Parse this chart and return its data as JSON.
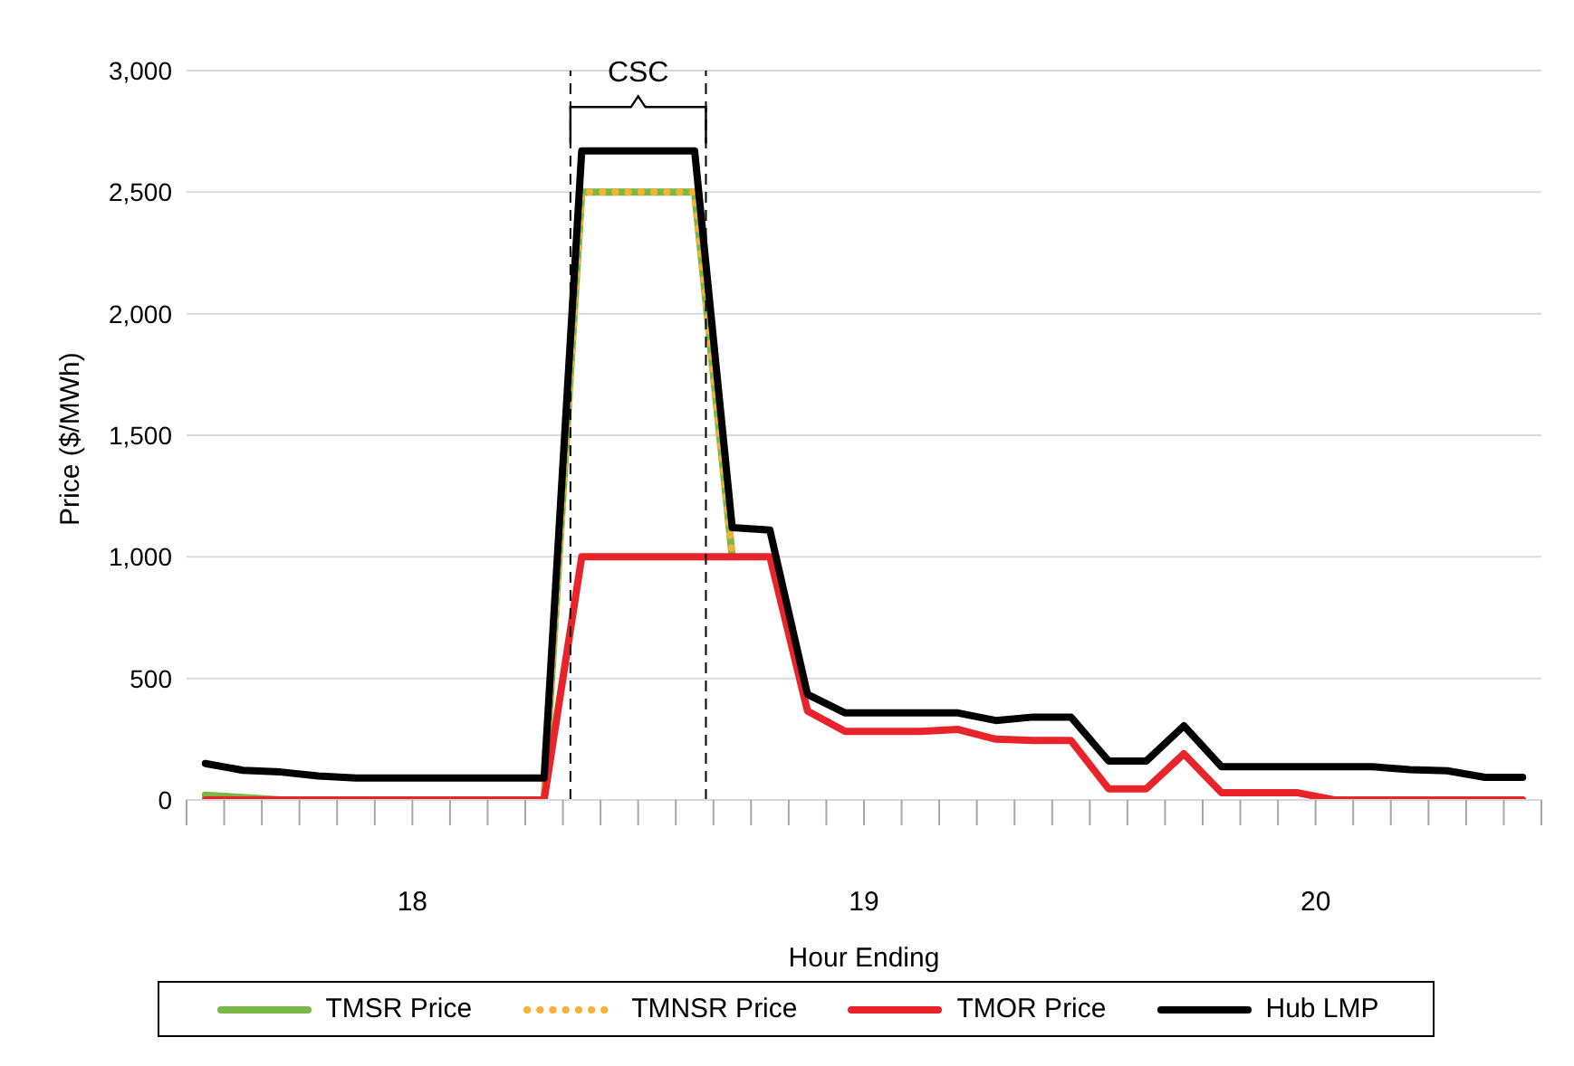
{
  "chart_data": {
    "type": "line",
    "xlabel": "Hour Ending",
    "ylabel": "Price ($/MWh)",
    "annotations": [
      "CSC"
    ],
    "x": [
      17.0417,
      17.125,
      17.2083,
      17.2917,
      17.375,
      17.4583,
      17.5417,
      17.625,
      17.7083,
      17.7917,
      17.875,
      17.9583,
      18.0417,
      18.125,
      18.2083,
      18.2917,
      18.375,
      18.4583,
      18.5417,
      18.625,
      18.7083,
      18.7917,
      18.875,
      18.9583,
      19.0417,
      19.125,
      19.2083,
      19.2917,
      19.375,
      19.4583,
      19.5417,
      19.625,
      19.7083,
      19.7917,
      19.875,
      19.9583
    ],
    "xlim": [
      17,
      20
    ],
    "xticks": [
      {
        "value": 17,
        "label": null
      },
      {
        "value": 17.0833,
        "label": null
      },
      {
        "value": 17.1667,
        "label": null
      },
      {
        "value": 17.25,
        "label": null
      },
      {
        "value": 17.3333,
        "label": null
      },
      {
        "value": 17.4167,
        "label": null
      },
      {
        "value": 17.5,
        "label": "18"
      },
      {
        "value": 17.5833,
        "label": null
      },
      {
        "value": 17.6667,
        "label": null
      },
      {
        "value": 17.75,
        "label": null
      },
      {
        "value": 17.8333,
        "label": null
      },
      {
        "value": 17.9167,
        "label": null
      },
      {
        "value": 18,
        "label": null
      },
      {
        "value": 18.0833,
        "label": null
      },
      {
        "value": 18.1667,
        "label": null
      },
      {
        "value": 18.25,
        "label": null
      },
      {
        "value": 18.3333,
        "label": null
      },
      {
        "value": 18.4167,
        "label": null
      },
      {
        "value": 18.5,
        "label": "19"
      },
      {
        "value": 18.5833,
        "label": null
      },
      {
        "value": 18.6667,
        "label": null
      },
      {
        "value": 18.75,
        "label": null
      },
      {
        "value": 18.8333,
        "label": null
      },
      {
        "value": 18.9167,
        "label": null
      },
      {
        "value": 19,
        "label": null
      },
      {
        "value": 19.0833,
        "label": null
      },
      {
        "value": 19.1667,
        "label": null
      },
      {
        "value": 19.25,
        "label": null
      },
      {
        "value": 19.3333,
        "label": null
      },
      {
        "value": 19.4167,
        "label": null
      },
      {
        "value": 19.5,
        "label": "20"
      },
      {
        "value": 19.5833,
        "label": null
      },
      {
        "value": 19.6667,
        "label": null
      },
      {
        "value": 19.75,
        "label": null
      },
      {
        "value": 19.8333,
        "label": null
      },
      {
        "value": 19.9167,
        "label": null
      },
      {
        "value": 20,
        "label": null
      }
    ],
    "ylim": [
      0,
      3000
    ],
    "yticks": [
      0,
      500,
      {
        "value": 1000,
        "label": "1,000"
      },
      {
        "value": 1500,
        "label": "1,500"
      },
      {
        "value": 2000,
        "label": "2,000"
      },
      {
        "value": 2500,
        "label": "2,500"
      },
      {
        "value": 3000,
        "label": "3,000"
      }
    ],
    "grid": "y",
    "legend": "bottom",
    "marker": "none",
    "ref_lines": [
      {
        "axis": "x",
        "value": 17.85,
        "line_style": "dashed",
        "color": "#000000"
      },
      {
        "axis": "x",
        "value": 18.15,
        "line_style": "dashed",
        "color": "#000000"
      }
    ],
    "series": [
      {
        "name": "TMSR Price",
        "color": "#7ab648",
        "line_style": "solid",
        "values": [
          20,
          10,
          0,
          null,
          null,
          null,
          null,
          null,
          null,
          0,
          2500,
          2500,
          2500,
          2500,
          1000,
          null,
          null,
          null,
          null,
          null,
          null,
          null,
          null,
          null,
          null,
          null,
          null,
          null,
          null,
          null,
          null,
          null,
          null,
          null,
          null,
          null
        ]
      },
      {
        "name": "TMNSR Price",
        "color": "#f5b335",
        "line_style": "dotted",
        "values": [
          null,
          null,
          null,
          null,
          null,
          null,
          null,
          null,
          null,
          0,
          2500,
          2500,
          2500,
          2500,
          1000,
          null,
          null,
          null,
          null,
          null,
          null,
          null,
          null,
          null,
          null,
          null,
          null,
          null,
          null,
          null,
          null,
          null,
          null,
          null,
          null,
          null
        ]
      },
      {
        "name": "TMOR Price",
        "color": "#e8232a",
        "line_style": "solid",
        "values": [
          0,
          0,
          0,
          0,
          0,
          0,
          0,
          0,
          0,
          0,
          1000,
          1000,
          1000,
          1000,
          1000,
          1000,
          366,
          282,
          282,
          282,
          290,
          250,
          245,
          245,
          46,
          46,
          190,
          30,
          30,
          30,
          0,
          0,
          0,
          0,
          0,
          0
        ]
      },
      {
        "name": "Hub LMP",
        "color": "#000000",
        "line_style": "solid",
        "values": [
          150,
          122,
          115,
          99,
          90,
          90,
          90,
          90,
          90,
          90,
          2670,
          2670,
          2670,
          2670,
          1120,
          1110,
          434,
          358,
          358,
          358,
          358,
          327,
          341,
          341,
          160,
          160,
          305,
          137,
          137,
          137,
          137,
          137,
          125,
          120,
          93,
          93
        ]
      }
    ]
  }
}
